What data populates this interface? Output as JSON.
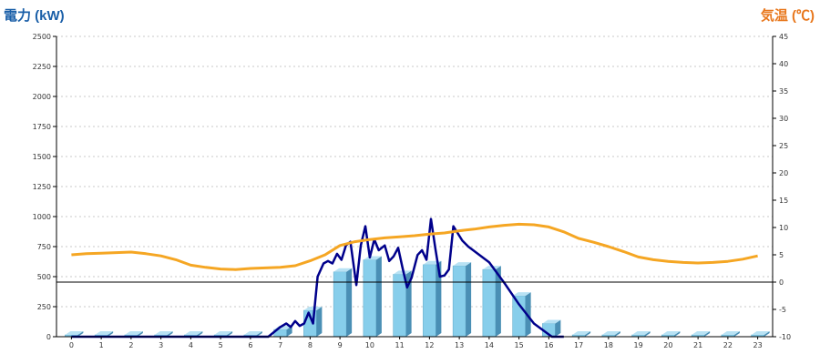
{
  "chart_data": {
    "type": "bar",
    "left_axis_title": "電力 (kW)",
    "right_axis_title": "気温 (℃)",
    "categories": [
      "0",
      "1",
      "2",
      "3",
      "4",
      "5",
      "6",
      "7",
      "8",
      "9",
      "10",
      "11",
      "12",
      "13",
      "14",
      "15",
      "16",
      "17",
      "18",
      "19",
      "20",
      "21",
      "22",
      "23"
    ],
    "left_ticks": [
      "0",
      "250",
      "500",
      "750",
      "1000",
      "1250",
      "1500",
      "1750",
      "2000",
      "2250",
      "2500"
    ],
    "right_ticks": [
      "-10",
      "-5",
      "0",
      "5",
      "10",
      "15",
      "20",
      "25",
      "30",
      "35",
      "40",
      "45"
    ],
    "ylim_left": [
      0,
      2500
    ],
    "ylim_right": [
      -10,
      45
    ],
    "grid": true,
    "series": [
      {
        "kind": "bar",
        "axis": "left",
        "color": "#87ceeb",
        "values": [
          10,
          10,
          10,
          10,
          10,
          10,
          10,
          60,
          220,
          540,
          640,
          520,
          600,
          590,
          560,
          340,
          110,
          10,
          10,
          10,
          10,
          10,
          10,
          10
        ]
      },
      {
        "kind": "line",
        "axis": "left",
        "color": "#00008b",
        "points": [
          [
            0,
            0
          ],
          [
            6.6,
            0
          ],
          [
            7,
            80
          ],
          [
            7.2,
            110
          ],
          [
            7.35,
            80
          ],
          [
            7.5,
            130
          ],
          [
            7.65,
            90
          ],
          [
            7.8,
            110
          ],
          [
            7.95,
            200
          ],
          [
            8.1,
            110
          ],
          [
            8.25,
            500
          ],
          [
            8.45,
            610
          ],
          [
            8.6,
            630
          ],
          [
            8.75,
            610
          ],
          [
            8.9,
            690
          ],
          [
            9.05,
            640
          ],
          [
            9.2,
            760
          ],
          [
            9.35,
            790
          ],
          [
            9.55,
            430
          ],
          [
            9.7,
            760
          ],
          [
            9.85,
            920
          ],
          [
            10.0,
            660
          ],
          [
            10.15,
            810
          ],
          [
            10.3,
            720
          ],
          [
            10.5,
            760
          ],
          [
            10.65,
            630
          ],
          [
            10.8,
            670
          ],
          [
            10.95,
            740
          ],
          [
            11.1,
            570
          ],
          [
            11.25,
            410
          ],
          [
            11.4,
            490
          ],
          [
            11.6,
            680
          ],
          [
            11.75,
            720
          ],
          [
            11.9,
            640
          ],
          [
            12.05,
            980
          ],
          [
            12.2,
            730
          ],
          [
            12.35,
            500
          ],
          [
            12.5,
            510
          ],
          [
            12.65,
            560
          ],
          [
            12.8,
            920
          ],
          [
            12.95,
            860
          ],
          [
            13.1,
            800
          ],
          [
            13.3,
            750
          ],
          [
            14,
            620
          ],
          [
            14.5,
            450
          ],
          [
            15,
            270
          ],
          [
            15.5,
            110
          ],
          [
            16.1,
            0
          ],
          [
            16.5,
            0
          ]
        ]
      },
      {
        "kind": "line",
        "axis": "right",
        "color": "#f5a623",
        "points": [
          [
            0,
            5
          ],
          [
            0.5,
            5.2
          ],
          [
            1,
            5.3
          ],
          [
            1.5,
            5.4
          ],
          [
            2,
            5.5
          ],
          [
            2.5,
            5.2
          ],
          [
            3,
            4.8
          ],
          [
            3.5,
            4.1
          ],
          [
            4,
            3.1
          ],
          [
            4.5,
            2.7
          ],
          [
            5,
            2.4
          ],
          [
            5.5,
            2.3
          ],
          [
            6,
            2.5
          ],
          [
            6.5,
            2.6
          ],
          [
            7,
            2.7
          ],
          [
            7.5,
            3
          ],
          [
            8,
            3.9
          ],
          [
            8.5,
            5
          ],
          [
            9,
            6.7
          ],
          [
            9.5,
            7.4
          ],
          [
            10,
            7.8
          ],
          [
            10.5,
            8.1
          ],
          [
            11,
            8.3
          ],
          [
            11.5,
            8.5
          ],
          [
            12,
            8.8
          ],
          [
            12.5,
            9
          ],
          [
            13,
            9.4
          ],
          [
            13.5,
            9.7
          ],
          [
            14,
            10.1
          ],
          [
            14.5,
            10.4
          ],
          [
            15,
            10.6
          ],
          [
            15.5,
            10.5
          ],
          [
            16,
            10.1
          ],
          [
            16.5,
            9.2
          ],
          [
            17,
            8
          ],
          [
            17.5,
            7.3
          ],
          [
            18,
            6.5
          ],
          [
            18.5,
            5.6
          ],
          [
            19,
            4.6
          ],
          [
            19.5,
            4.1
          ],
          [
            20,
            3.8
          ],
          [
            20.5,
            3.6
          ],
          [
            21,
            3.5
          ],
          [
            21.5,
            3.6
          ],
          [
            22,
            3.8
          ],
          [
            22.5,
            4.2
          ],
          [
            23,
            4.8
          ]
        ]
      }
    ]
  }
}
